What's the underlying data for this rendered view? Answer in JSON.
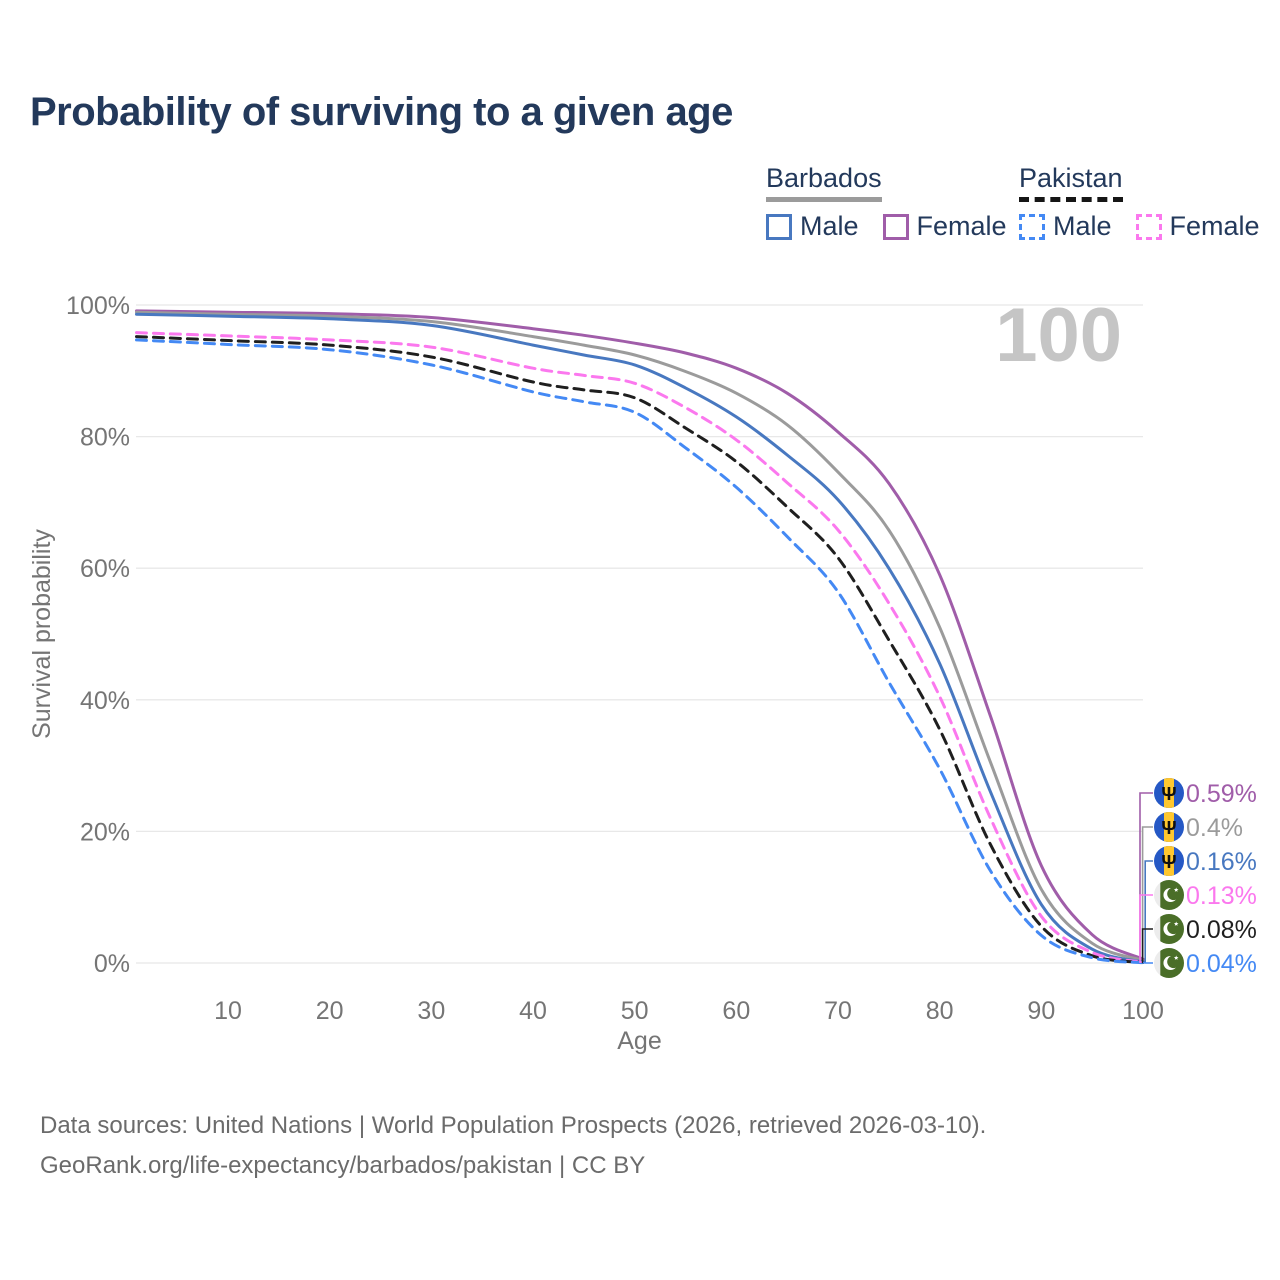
{
  "page": {
    "title": "Probability of surviving to a given age",
    "footer": {
      "line1": "Data sources: United Nations | World Population Prospects (2026, retrieved 2026-03-10).",
      "line2": "GeoRank.org/life-expectancy/barbados/pakistan | CC BY"
    }
  },
  "legend": {
    "groups": [
      {
        "title": "Barbados",
        "line_style": "solid",
        "underline_color": "#9b9b9b",
        "items": [
          {
            "label": "Male",
            "color": "#4878c0"
          },
          {
            "label": "Female",
            "color": "#a05da9"
          }
        ]
      },
      {
        "title": "Pakistan",
        "line_style": "dashed",
        "underline_color": "#161616",
        "items": [
          {
            "label": "Male",
            "color": "#4489f4"
          },
          {
            "label": "Female",
            "color": "#fb78ee"
          }
        ]
      }
    ]
  },
  "chart_data": {
    "type": "line",
    "title": "Probability of surviving to a given age",
    "xlabel": "Age",
    "ylabel": "Survival probability",
    "watermark": "100",
    "xlim": [
      1,
      100
    ],
    "ylim": [
      0,
      100
    ],
    "grid": "horizontal",
    "x_ticks": [
      {
        "v": 10,
        "label": "10"
      },
      {
        "v": 20,
        "label": "20"
      },
      {
        "v": 30,
        "label": "30"
      },
      {
        "v": 40,
        "label": "40"
      },
      {
        "v": 50,
        "label": "50"
      },
      {
        "v": 60,
        "label": "60"
      },
      {
        "v": 70,
        "label": "70"
      },
      {
        "v": 80,
        "label": "80"
      },
      {
        "v": 90,
        "label": "90"
      },
      {
        "v": 100,
        "label": "100"
      }
    ],
    "y_ticks": [
      {
        "v": 0,
        "label": "0%"
      },
      {
        "v": 20,
        "label": "20%"
      },
      {
        "v": 40,
        "label": "40%"
      },
      {
        "v": 60,
        "label": "60%"
      },
      {
        "v": 80,
        "label": "80%"
      },
      {
        "v": 100,
        "label": "100%"
      }
    ],
    "series": [
      {
        "name": "Barbados Female",
        "country": "Barbados",
        "sex": "Female",
        "color": "#a05da9",
        "line_style": "solid",
        "flag": "barbados",
        "end_label": "0.59%",
        "points": [
          [
            1,
            99.1
          ],
          [
            10,
            98.9
          ],
          [
            20,
            98.7
          ],
          [
            30,
            98.1
          ],
          [
            40,
            96.4
          ],
          [
            45,
            95.4
          ],
          [
            50,
            94.2
          ],
          [
            55,
            92.7
          ],
          [
            60,
            90.4
          ],
          [
            65,
            86.6
          ],
          [
            70,
            80.7
          ],
          [
            75,
            72.9
          ],
          [
            80,
            59.0
          ],
          [
            85,
            37.5
          ],
          [
            90,
            14.8
          ],
          [
            95,
            4.3
          ],
          [
            100,
            0.59
          ]
        ]
      },
      {
        "name": "Barbados Both sexes",
        "country": "Barbados",
        "sex": "Both",
        "color": "#9b9b9b",
        "line_style": "solid",
        "flag": "barbados",
        "end_label": "0.4%",
        "points": [
          [
            1,
            98.9
          ],
          [
            10,
            98.6
          ],
          [
            20,
            98.3
          ],
          [
            30,
            97.5
          ],
          [
            40,
            95.2
          ],
          [
            45,
            93.9
          ],
          [
            50,
            92.4
          ],
          [
            55,
            89.9
          ],
          [
            60,
            86.6
          ],
          [
            65,
            81.8
          ],
          [
            70,
            74.6
          ],
          [
            75,
            65.8
          ],
          [
            80,
            51.0
          ],
          [
            85,
            30.5
          ],
          [
            90,
            11.2
          ],
          [
            95,
            3.0
          ],
          [
            100,
            0.4
          ]
        ]
      },
      {
        "name": "Barbados Male",
        "country": "Barbados",
        "sex": "Male",
        "color": "#4878c0",
        "line_style": "solid",
        "flag": "barbados",
        "end_label": "0.16%",
        "points": [
          [
            1,
            98.6
          ],
          [
            10,
            98.3
          ],
          [
            20,
            97.9
          ],
          [
            30,
            96.9
          ],
          [
            40,
            93.9
          ],
          [
            45,
            92.4
          ],
          [
            50,
            90.9
          ],
          [
            55,
            87.4
          ],
          [
            60,
            83.0
          ],
          [
            65,
            77.2
          ],
          [
            70,
            70.4
          ],
          [
            75,
            60.0
          ],
          [
            80,
            45.5
          ],
          [
            85,
            26.0
          ],
          [
            90,
            8.9
          ],
          [
            95,
            2.1
          ],
          [
            100,
            0.16
          ]
        ]
      },
      {
        "name": "Pakistan Female",
        "country": "Pakistan",
        "sex": "Female",
        "color": "#fb78ee",
        "line_style": "dashed",
        "flag": "pakistan",
        "end_label": "0.13%",
        "points": [
          [
            1,
            95.8
          ],
          [
            10,
            95.3
          ],
          [
            20,
            94.7
          ],
          [
            30,
            93.6
          ],
          [
            40,
            90.4
          ],
          [
            45,
            89.3
          ],
          [
            50,
            88.1
          ],
          [
            55,
            84.4
          ],
          [
            60,
            79.5
          ],
          [
            65,
            73.0
          ],
          [
            70,
            65.8
          ],
          [
            75,
            54.7
          ],
          [
            80,
            40.5
          ],
          [
            85,
            22.0
          ],
          [
            90,
            7.1
          ],
          [
            95,
            1.6
          ],
          [
            100,
            0.13
          ]
        ]
      },
      {
        "name": "Pakistan Both sexes",
        "country": "Pakistan",
        "sex": "Both",
        "color": "#1f1f1f",
        "line_style": "dashed",
        "flag": "pakistan",
        "end_label": "0.08%",
        "points": [
          [
            1,
            95.2
          ],
          [
            10,
            94.6
          ],
          [
            20,
            93.9
          ],
          [
            30,
            92.1
          ],
          [
            40,
            88.3
          ],
          [
            45,
            87.1
          ],
          [
            50,
            85.9
          ],
          [
            55,
            81.3
          ],
          [
            60,
            76.2
          ],
          [
            65,
            69.3
          ],
          [
            70,
            61.6
          ],
          [
            75,
            49.1
          ],
          [
            80,
            35.5
          ],
          [
            85,
            18.0
          ],
          [
            90,
            5.6
          ],
          [
            95,
            1.1
          ],
          [
            100,
            0.08
          ]
        ]
      },
      {
        "name": "Pakistan Male",
        "country": "Pakistan",
        "sex": "Male",
        "color": "#4489f4",
        "line_style": "dashed",
        "flag": "pakistan",
        "end_label": "0.04%",
        "points": [
          [
            1,
            94.7
          ],
          [
            10,
            94.0
          ],
          [
            20,
            93.2
          ],
          [
            30,
            90.9
          ],
          [
            40,
            86.8
          ],
          [
            45,
            85.3
          ],
          [
            50,
            83.7
          ],
          [
            55,
            78.3
          ],
          [
            60,
            72.3
          ],
          [
            65,
            64.8
          ],
          [
            70,
            56.4
          ],
          [
            75,
            42.7
          ],
          [
            80,
            29.5
          ],
          [
            85,
            14.0
          ],
          [
            90,
            4.2
          ],
          [
            95,
            0.8
          ],
          [
            100,
            0.04
          ]
        ]
      }
    ],
    "flag_colors": {
      "barbados_blue": "#2558c5",
      "barbados_gold": "#ffc72e",
      "barbados_trident": "#101010",
      "pakistan_green": "#4a6e28",
      "pakistan_hoist": "#ececec"
    }
  }
}
